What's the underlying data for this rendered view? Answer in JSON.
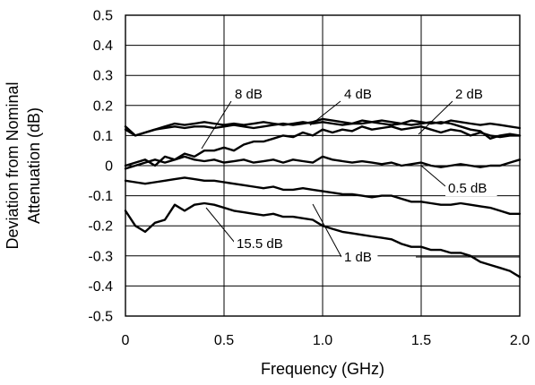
{
  "chart_data": {
    "type": "line",
    "xlabel": "Frequency (GHz)",
    "ylabel": [
      "Deviation from Nominal",
      "Attenuation (dB)"
    ],
    "xlim": [
      0,
      2.0
    ],
    "ylim": [
      -0.5,
      0.5
    ],
    "xticks": [
      "0",
      "0.5",
      "1.0",
      "1.5",
      "2.0"
    ],
    "yticks": [
      "0.5",
      "0.4",
      "0.3",
      "0.2",
      "0.1",
      "0",
      "-0.1",
      "-0.2",
      "-0.3",
      "-0.4",
      "-0.5"
    ],
    "xtick_values": [
      0,
      0.5,
      1.0,
      1.5,
      2.0
    ],
    "ytick_values": [
      0.5,
      0.4,
      0.3,
      0.2,
      0.1,
      0,
      -0.1,
      -0.2,
      -0.3,
      -0.4,
      -0.5
    ],
    "grid": true,
    "series": [
      {
        "name": "8 dB",
        "x": [
          0,
          0.05,
          0.1,
          0.15,
          0.2,
          0.25,
          0.3,
          0.35,
          0.4,
          0.45,
          0.5,
          0.55,
          0.6,
          0.65,
          0.7,
          0.75,
          0.8,
          0.85,
          0.9,
          0.95,
          1.0,
          1.05,
          1.1,
          1.15,
          1.2,
          1.25,
          1.3,
          1.35,
          1.4,
          1.45,
          1.5,
          1.55,
          1.6,
          1.65,
          1.7,
          1.75,
          1.8,
          1.85,
          1.9,
          1.95,
          2.0
        ],
        "values": [
          0.12,
          0.1,
          0.11,
          0.12,
          0.13,
          0.14,
          0.135,
          0.14,
          0.145,
          0.14,
          0.135,
          0.14,
          0.135,
          0.14,
          0.145,
          0.14,
          0.135,
          0.14,
          0.145,
          0.14,
          0.145,
          0.14,
          0.135,
          0.14,
          0.15,
          0.145,
          0.14,
          0.135,
          0.14,
          0.15,
          0.145,
          0.14,
          0.145,
          0.14,
          0.13,
          0.12,
          0.115,
          0.09,
          0.1,
          0.105,
          0.1
        ]
      },
      {
        "name": "4 dB",
        "x": [
          0,
          0.05,
          0.1,
          0.15,
          0.2,
          0.25,
          0.3,
          0.35,
          0.4,
          0.45,
          0.5,
          0.55,
          0.6,
          0.65,
          0.7,
          0.75,
          0.8,
          0.85,
          0.9,
          0.95,
          1.0,
          1.05,
          1.1,
          1.15,
          1.2,
          1.25,
          1.3,
          1.35,
          1.4,
          1.45,
          1.5,
          1.55,
          1.6,
          1.65,
          1.7,
          1.75,
          1.8,
          1.85,
          1.9,
          1.95,
          2.0
        ],
        "values": [
          0.13,
          0.1,
          0.11,
          0.12,
          0.125,
          0.13,
          0.125,
          0.13,
          0.13,
          0.125,
          0.13,
          0.135,
          0.13,
          0.125,
          0.13,
          0.135,
          0.14,
          0.135,
          0.14,
          0.145,
          0.155,
          0.15,
          0.145,
          0.14,
          0.14,
          0.145,
          0.15,
          0.145,
          0.14,
          0.135,
          0.14,
          0.145,
          0.14,
          0.15,
          0.145,
          0.14,
          0.135,
          0.14,
          0.135,
          0.13,
          0.125
        ]
      },
      {
        "name": "2 dB",
        "x": [
          0,
          0.05,
          0.1,
          0.15,
          0.2,
          0.25,
          0.3,
          0.35,
          0.4,
          0.45,
          0.5,
          0.55,
          0.6,
          0.65,
          0.7,
          0.75,
          0.8,
          0.85,
          0.9,
          0.95,
          1.0,
          1.05,
          1.1,
          1.15,
          1.2,
          1.25,
          1.3,
          1.35,
          1.4,
          1.45,
          1.5,
          1.55,
          1.6,
          1.65,
          1.7,
          1.75,
          1.8,
          1.85,
          1.9,
          1.95,
          2.0
        ],
        "values": [
          0.0,
          0.01,
          0.02,
          0.0,
          0.03,
          0.02,
          0.04,
          0.03,
          0.05,
          0.05,
          0.06,
          0.05,
          0.07,
          0.08,
          0.08,
          0.09,
          0.1,
          0.095,
          0.11,
          0.1,
          0.12,
          0.11,
          0.12,
          0.115,
          0.13,
          0.12,
          0.125,
          0.13,
          0.12,
          0.125,
          0.13,
          0.12,
          0.11,
          0.12,
          0.115,
          0.1,
          0.11,
          0.1,
          0.095,
          0.1,
          0.1
        ]
      },
      {
        "name": "0.5 dB",
        "x": [
          0,
          0.05,
          0.1,
          0.15,
          0.2,
          0.25,
          0.3,
          0.35,
          0.4,
          0.45,
          0.5,
          0.55,
          0.6,
          0.65,
          0.7,
          0.75,
          0.8,
          0.85,
          0.9,
          0.95,
          1.0,
          1.05,
          1.1,
          1.15,
          1.2,
          1.25,
          1.3,
          1.35,
          1.4,
          1.45,
          1.5,
          1.55,
          1.6,
          1.65,
          1.7,
          1.75,
          1.8,
          1.85,
          1.9,
          1.95,
          2.0
        ],
        "values": [
          -0.01,
          0.0,
          0.01,
          0.02,
          0.01,
          0.02,
          0.03,
          0.02,
          0.015,
          0.02,
          0.01,
          0.015,
          0.02,
          0.01,
          0.015,
          0.02,
          0.01,
          0.02,
          0.015,
          0.01,
          0.03,
          0.02,
          0.015,
          0.01,
          0.015,
          0.01,
          0.005,
          0.01,
          0.0,
          0.005,
          0.01,
          0.0,
          -0.005,
          0.0,
          0.005,
          0.0,
          -0.005,
          0.0,
          0.0,
          0.01,
          0.02
        ]
      },
      {
        "name": "1 dB",
        "x": [
          0,
          0.05,
          0.1,
          0.15,
          0.2,
          0.25,
          0.3,
          0.35,
          0.4,
          0.45,
          0.5,
          0.55,
          0.6,
          0.65,
          0.7,
          0.75,
          0.8,
          0.85,
          0.9,
          0.95,
          1.0,
          1.05,
          1.1,
          1.15,
          1.2,
          1.25,
          1.3,
          1.35,
          1.4,
          1.45,
          1.5,
          1.55,
          1.6,
          1.65,
          1.7,
          1.75,
          1.8,
          1.85,
          1.9,
          1.95,
          2.0
        ],
        "values": [
          -0.05,
          -0.055,
          -0.06,
          -0.055,
          -0.05,
          -0.045,
          -0.04,
          -0.045,
          -0.05,
          -0.05,
          -0.055,
          -0.06,
          -0.065,
          -0.07,
          -0.075,
          -0.07,
          -0.08,
          -0.08,
          -0.075,
          -0.08,
          -0.085,
          -0.09,
          -0.095,
          -0.095,
          -0.1,
          -0.105,
          -0.1,
          -0.1,
          -0.11,
          -0.12,
          -0.12,
          -0.125,
          -0.13,
          -0.13,
          -0.125,
          -0.13,
          -0.135,
          -0.14,
          -0.15,
          -0.16,
          -0.16
        ]
      },
      {
        "name": "15.5 dB",
        "x": [
          0,
          0.05,
          0.1,
          0.15,
          0.2,
          0.25,
          0.3,
          0.35,
          0.4,
          0.45,
          0.5,
          0.55,
          0.6,
          0.65,
          0.7,
          0.75,
          0.8,
          0.85,
          0.9,
          0.95,
          1.0,
          1.05,
          1.1,
          1.15,
          1.2,
          1.25,
          1.3,
          1.35,
          1.4,
          1.45,
          1.5,
          1.55,
          1.6,
          1.65,
          1.7,
          1.75,
          1.8,
          1.85,
          1.9,
          1.95,
          2.0
        ],
        "values": [
          -0.15,
          -0.2,
          -0.22,
          -0.19,
          -0.18,
          -0.13,
          -0.15,
          -0.13,
          -0.125,
          -0.13,
          -0.14,
          -0.15,
          -0.155,
          -0.16,
          -0.165,
          -0.16,
          -0.17,
          -0.17,
          -0.175,
          -0.18,
          -0.2,
          -0.21,
          -0.22,
          -0.225,
          -0.23,
          -0.235,
          -0.24,
          -0.245,
          -0.26,
          -0.27,
          -0.27,
          -0.28,
          -0.28,
          -0.29,
          -0.29,
          -0.3,
          -0.32,
          -0.33,
          -0.34,
          -0.35,
          -0.37
        ]
      }
    ],
    "annotations": [
      {
        "label": "8 dB",
        "series": "8 dB"
      },
      {
        "label": "4 dB",
        "series": "4 dB"
      },
      {
        "label": "2 dB",
        "series": "2 dB"
      },
      {
        "label": "0.5 dB",
        "series": "0.5 dB"
      },
      {
        "label": "1 dB",
        "series": "1 dB"
      },
      {
        "label": "15.5 dB",
        "series": "15.5 dB"
      }
    ]
  }
}
